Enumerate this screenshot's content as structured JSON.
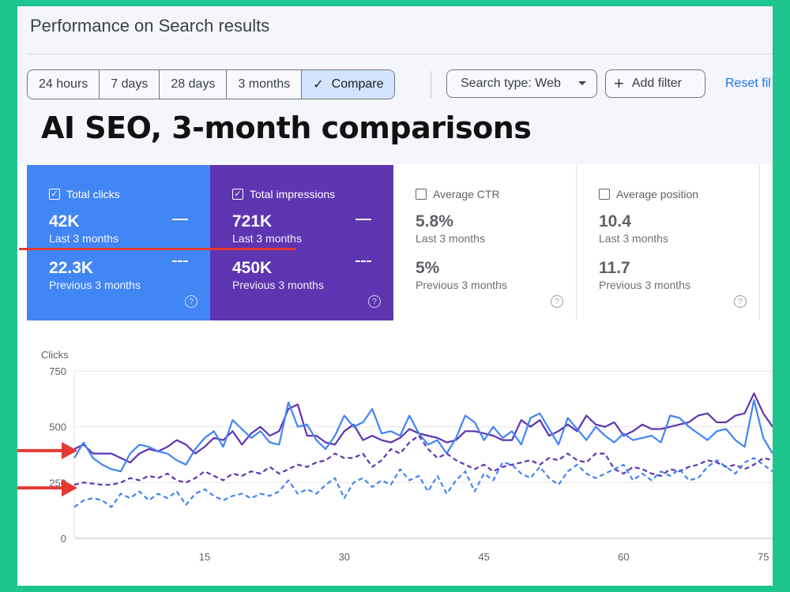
{
  "header": {
    "title": "Performance on Search results"
  },
  "date_range": {
    "options": [
      "24 hours",
      "7 days",
      "28 days",
      "3 months"
    ],
    "compare_label": "Compare"
  },
  "filters": {
    "search_type": "Search type: Web",
    "add_filter": "Add filter",
    "reset": "Reset fil"
  },
  "headline": "AI SEO, 3-month comparisons",
  "cards": [
    {
      "label": "Total clicks",
      "checked": true,
      "value": "42K",
      "period": "Last 3 months",
      "prev_value": "22.3K",
      "prev_period": "Previous 3 months"
    },
    {
      "label": "Total impressions",
      "checked": true,
      "value": "721K",
      "period": "Last 3 months",
      "prev_value": "450K",
      "prev_period": "Previous 3 months"
    },
    {
      "label": "Average CTR",
      "checked": false,
      "value": "5.8%",
      "period": "Last 3 months",
      "prev_value": "5%",
      "prev_period": "Previous 3 months"
    },
    {
      "label": "Average position",
      "checked": false,
      "value": "10.4",
      "period": "Last 3 months",
      "prev_value": "11.7",
      "prev_period": "Previous 3 months"
    }
  ],
  "colors": {
    "clicks": "#4285f4",
    "impressions": "#5e35b1",
    "annotation": "#e53935",
    "background": "#1fc58f"
  },
  "chart_data": {
    "type": "line",
    "ylabel": "Clicks",
    "ylim": [
      0,
      750
    ],
    "yticks": [
      0,
      250,
      500,
      750
    ],
    "xticks": [
      15,
      30,
      45,
      60,
      75
    ],
    "xlim": [
      1,
      76
    ],
    "grid": true,
    "series": [
      {
        "style": "solid",
        "color": "#5e35b1",
        "x": [
          1,
          2,
          3,
          4,
          5,
          6,
          7,
          8,
          9,
          10,
          11,
          12,
          13,
          14,
          15,
          16,
          17,
          18,
          19,
          20,
          21,
          22,
          23,
          24,
          25,
          26,
          27,
          28,
          29,
          30,
          31,
          32,
          33,
          34,
          35,
          36,
          37,
          38,
          39,
          40,
          41,
          42,
          43,
          44,
          45,
          46,
          47,
          48,
          49,
          50,
          51,
          52,
          53,
          54,
          55,
          56,
          57,
          58,
          59,
          60,
          61,
          62,
          63,
          64,
          65,
          66,
          67,
          68,
          69,
          70,
          71,
          72,
          73,
          74,
          75,
          76
        ],
        "y": [
          400,
          420,
          380,
          380,
          380,
          360,
          340,
          380,
          400,
          390,
          410,
          440,
          420,
          380,
          410,
          450,
          440,
          480,
          420,
          470,
          500,
          460,
          480,
          580,
          600,
          460,
          460,
          430,
          420,
          480,
          510,
          440,
          460,
          440,
          430,
          450,
          490,
          470,
          460,
          450,
          430,
          440,
          480,
          480,
          470,
          460,
          440,
          440,
          530,
          500,
          530,
          460,
          480,
          510,
          480,
          550,
          510,
          500,
          520,
          460,
          480,
          510,
          490,
          490,
          500,
          510,
          520,
          550,
          560,
          520,
          520,
          550,
          560,
          650,
          560,
          500
        ]
      },
      {
        "style": "solid",
        "color": "#4285f4",
        "x": [
          1,
          2,
          3,
          4,
          5,
          6,
          7,
          8,
          9,
          10,
          11,
          12,
          13,
          14,
          15,
          16,
          17,
          18,
          19,
          20,
          21,
          22,
          23,
          24,
          25,
          26,
          27,
          28,
          29,
          30,
          31,
          32,
          33,
          34,
          35,
          36,
          37,
          38,
          39,
          40,
          41,
          42,
          43,
          44,
          45,
          46,
          47,
          48,
          49,
          50,
          51,
          52,
          53,
          54,
          55,
          56,
          57,
          58,
          59,
          60,
          61,
          62,
          63,
          64,
          65,
          66,
          67,
          68,
          69,
          70,
          71,
          72,
          73,
          74,
          75,
          76
        ],
        "y": [
          360,
          430,
          360,
          330,
          310,
          300,
          380,
          420,
          410,
          390,
          380,
          350,
          330,
          400,
          450,
          480,
          410,
          530,
          490,
          450,
          480,
          430,
          420,
          610,
          500,
          510,
          440,
          400,
          460,
          550,
          500,
          520,
          580,
          470,
          480,
          460,
          550,
          470,
          420,
          440,
          380,
          450,
          550,
          520,
          440,
          500,
          450,
          480,
          420,
          540,
          560,
          490,
          420,
          540,
          490,
          440,
          500,
          460,
          430,
          470,
          440,
          450,
          460,
          430,
          550,
          540,
          500,
          470,
          440,
          480,
          490,
          440,
          410,
          620,
          450,
          380
        ]
      },
      {
        "style": "dashed",
        "color": "#5e35b1",
        "x": [
          1,
          2,
          3,
          4,
          5,
          6,
          7,
          8,
          9,
          10,
          11,
          12,
          13,
          14,
          15,
          16,
          17,
          18,
          19,
          20,
          21,
          22,
          23,
          24,
          25,
          26,
          27,
          28,
          29,
          30,
          31,
          32,
          33,
          34,
          35,
          36,
          37,
          38,
          39,
          40,
          41,
          42,
          43,
          44,
          45,
          46,
          47,
          48,
          49,
          50,
          51,
          52,
          53,
          54,
          55,
          56,
          57,
          58,
          59,
          60,
          61,
          62,
          63,
          64,
          65,
          66,
          67,
          68,
          69,
          70,
          71,
          72,
          73,
          74,
          75,
          76
        ],
        "y": [
          240,
          250,
          245,
          240,
          240,
          250,
          270,
          260,
          280,
          270,
          290,
          260,
          250,
          270,
          300,
          280,
          260,
          290,
          280,
          300,
          290,
          320,
          290,
          310,
          330,
          320,
          340,
          350,
          380,
          360,
          360,
          380,
          320,
          350,
          400,
          380,
          430,
          460,
          400,
          360,
          380,
          350,
          330,
          310,
          330,
          300,
          320,
          330,
          340,
          350,
          330,
          360,
          350,
          380,
          350,
          340,
          380,
          380,
          310,
          290,
          320,
          310,
          290,
          280,
          310,
          300,
          320,
          330,
          350,
          340,
          320,
          330,
          310,
          330,
          360,
          350
        ]
      },
      {
        "style": "dashed",
        "color": "#4285f4",
        "x": [
          1,
          2,
          3,
          4,
          5,
          6,
          7,
          8,
          9,
          10,
          11,
          12,
          13,
          14,
          15,
          16,
          17,
          18,
          19,
          20,
          21,
          22,
          23,
          24,
          25,
          26,
          27,
          28,
          29,
          30,
          31,
          32,
          33,
          34,
          35,
          36,
          37,
          38,
          39,
          40,
          41,
          42,
          43,
          44,
          45,
          46,
          47,
          48,
          49,
          50,
          51,
          52,
          53,
          54,
          55,
          56,
          57,
          58,
          59,
          60,
          61,
          62,
          63,
          64,
          65,
          66,
          67,
          68,
          69,
          70,
          71,
          72,
          73,
          74,
          75,
          76
        ],
        "y": [
          140,
          170,
          180,
          170,
          140,
          200,
          180,
          210,
          170,
          200,
          180,
          210,
          150,
          200,
          220,
          190,
          170,
          190,
          200,
          180,
          200,
          190,
          210,
          260,
          200,
          220,
          200,
          240,
          270,
          180,
          250,
          270,
          230,
          260,
          240,
          310,
          260,
          280,
          210,
          280,
          200,
          260,
          300,
          210,
          290,
          260,
          340,
          330,
          290,
          270,
          320,
          270,
          240,
          300,
          330,
          290,
          270,
          290,
          310,
          330,
          260,
          290,
          260,
          300,
          280,
          310,
          260,
          270,
          320,
          350,
          320,
          290,
          340,
          360,
          330,
          300
        ]
      }
    ]
  }
}
